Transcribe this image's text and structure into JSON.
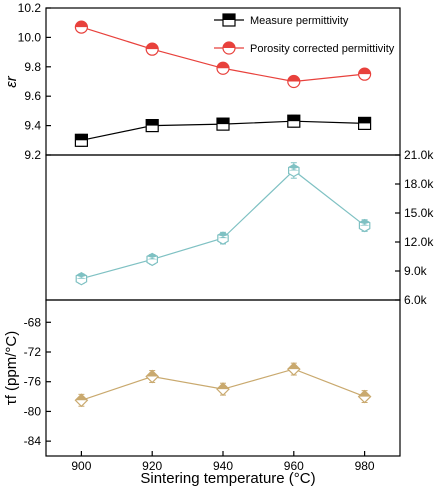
{
  "chart_data": [
    {
      "type": "line",
      "ylabel": "εr",
      "ylim": [
        9.2,
        10.2
      ],
      "yticks": [
        "9.2",
        "9.4",
        "9.6",
        "9.8",
        "10.0",
        "10.2"
      ],
      "x": [
        900,
        920,
        940,
        960,
        980
      ],
      "legend_position": "top-right",
      "series": [
        {
          "name": "Measure permittivity",
          "values": [
            9.3,
            9.4,
            9.41,
            9.43,
            9.415
          ],
          "errors": [
            0.04,
            0.04,
            0.04,
            0.04,
            0.04
          ],
          "color": "#000000",
          "marker": "half-filled-square"
        },
        {
          "name": "Porosity corrected permittivity",
          "values": [
            10.07,
            9.92,
            9.79,
            9.7,
            9.75
          ],
          "color": "#e8413c",
          "marker": "half-filled-circle"
        }
      ]
    },
    {
      "type": "line",
      "ylim": [
        6000,
        21000
      ],
      "yticks": [
        "6.0k",
        "9.0k",
        "12.0k",
        "15.0k",
        "18.0k",
        "21.0k"
      ],
      "x": [
        900,
        920,
        940,
        960,
        980
      ],
      "series": [
        {
          "values": [
            8200,
            10200,
            12400,
            19400,
            13700
          ],
          "errors": [
            500,
            500,
            600,
            800,
            600
          ],
          "color": "#7fc1c3",
          "marker": "half-filled-hexagon"
        }
      ]
    },
    {
      "type": "line",
      "ylabel": "τf (ppm/°C)",
      "ylim": [
        -86,
        -65
      ],
      "yticks": [
        "-84",
        "-80",
        "-76",
        "-72",
        "-68"
      ],
      "x": [
        900,
        920,
        940,
        960,
        980
      ],
      "series": [
        {
          "values": [
            -78.5,
            -75.3,
            -77,
            -74.3,
            -78
          ],
          "errors": [
            0.8,
            0.8,
            0.8,
            0.8,
            0.8
          ],
          "color": "#c9a96e",
          "marker": "half-filled-diamond"
        }
      ]
    }
  ],
  "x_axis": {
    "label": "Sintering temperature (°C)",
    "ticks": [
      "900",
      "920",
      "940",
      "960",
      "980"
    ]
  }
}
